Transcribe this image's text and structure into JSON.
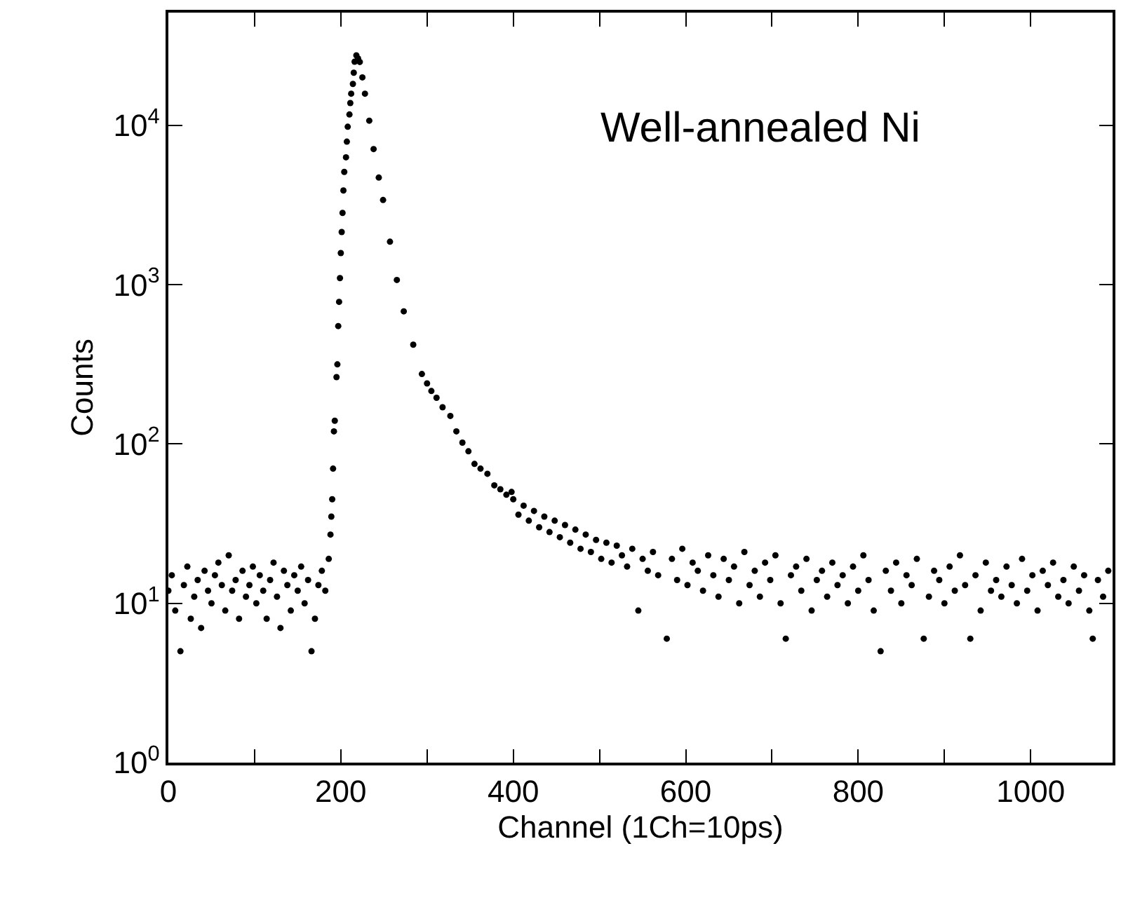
{
  "chart_data": {
    "type": "scatter",
    "xlabel": "Channel (1Ch=10ps)",
    "ylabel": "Counts",
    "annotations": [
      "Well-annealed Ni"
    ],
    "x": [
      0,
      4,
      8,
      14,
      18,
      22,
      26,
      30,
      34,
      38,
      42,
      46,
      50,
      54,
      58,
      62,
      66,
      70,
      74,
      78,
      82,
      86,
      90,
      94,
      98,
      102,
      106,
      110,
      114,
      118,
      122,
      126,
      130,
      134,
      138,
      142,
      146,
      150,
      154,
      158,
      162,
      166,
      170,
      174,
      178,
      182,
      186,
      188,
      189,
      190,
      191,
      192,
      193,
      195,
      196,
      197,
      198,
      199,
      200,
      201,
      202,
      203,
      204,
      206,
      207,
      208,
      210,
      211,
      212,
      214,
      215,
      216,
      218,
      220,
      222,
      225,
      228,
      233,
      238,
      244,
      249,
      257,
      265,
      273,
      284,
      294,
      300,
      305,
      311,
      318,
      327,
      334,
      341,
      348,
      355,
      362,
      370,
      378,
      385,
      392,
      398,
      400,
      406,
      412,
      418,
      424,
      430,
      436,
      442,
      448,
      454,
      460,
      466,
      472,
      478,
      484,
      490,
      496,
      502,
      508,
      514,
      520,
      526,
      532,
      538,
      545,
      550,
      556,
      562,
      568,
      578,
      584,
      590,
      596,
      602,
      608,
      614,
      620,
      626,
      632,
      638,
      644,
      650,
      656,
      662,
      668,
      674,
      680,
      686,
      692,
      698,
      704,
      710,
      716,
      722,
      728,
      734,
      740,
      746,
      752,
      758,
      764,
      770,
      776,
      782,
      788,
      794,
      800,
      806,
      812,
      818,
      826,
      832,
      838,
      844,
      850,
      856,
      862,
      868,
      876,
      882,
      888,
      894,
      900,
      906,
      912,
      918,
      924,
      930,
      936,
      942,
      948,
      954,
      960,
      966,
      972,
      978,
      984,
      990,
      996,
      1002,
      1008,
      1014,
      1020,
      1026,
      1032,
      1038,
      1044,
      1050,
      1056,
      1062,
      1068,
      1072,
      1078,
      1084,
      1090
    ],
    "series": [
      {
        "color": "#000000",
        "values": [
          12,
          15,
          9,
          5,
          13,
          17,
          8,
          11,
          14,
          7,
          16,
          12,
          10,
          15,
          18,
          13,
          9,
          20,
          12,
          14,
          8,
          16,
          11,
          13,
          17,
          10,
          15,
          12,
          8,
          14,
          18,
          11,
          7,
          16,
          13,
          9,
          15,
          12,
          17,
          10,
          14,
          5,
          8,
          13,
          16,
          12,
          19,
          27,
          35,
          45,
          70,
          120,
          140,
          263,
          316,
          550,
          780,
          1100,
          1580,
          2140,
          2820,
          3900,
          5100,
          6300,
          7900,
          9800,
          11700,
          13800,
          15800,
          18200,
          21400,
          25100,
          27500,
          26300,
          25000,
          20000,
          15800,
          10700,
          7100,
          4700,
          3400,
          1860,
          1070,
          680,
          420,
          275,
          240,
          215,
          195,
          170,
          150,
          120,
          102,
          90,
          75,
          70,
          65,
          55,
          52,
          48,
          50,
          45,
          36,
          41,
          33,
          38,
          30,
          35,
          28,
          33,
          26,
          31,
          24,
          29,
          22,
          27,
          21,
          25,
          19,
          24,
          18,
          23,
          20,
          17,
          22,
          9,
          19,
          16,
          21,
          15,
          6,
          19,
          14,
          22,
          13,
          18,
          16,
          12,
          20,
          15,
          11,
          19,
          14,
          17,
          10,
          21,
          13,
          16,
          11,
          18,
          14,
          20,
          10,
          6,
          15,
          17,
          12,
          19,
          9,
          14,
          16,
          11,
          18,
          13,
          15,
          10,
          17,
          12,
          20,
          14,
          9,
          5,
          16,
          12,
          18,
          10,
          15,
          13,
          19,
          6,
          11,
          16,
          14,
          10,
          17,
          12,
          20,
          13,
          6,
          15,
          9,
          18,
          12,
          14,
          11,
          17,
          13,
          10,
          19,
          12,
          15,
          9,
          16,
          13,
          18,
          11,
          14,
          10,
          17,
          12,
          15,
          9,
          6,
          14,
          11,
          16
        ]
      }
    ],
    "xlim": [
      0,
      1095
    ],
    "xticks": [
      0,
      {
        "value": 100,
        "label": null
      },
      200,
      {
        "value": 300,
        "label": null
      },
      400,
      {
        "value": 500,
        "label": null
      },
      600,
      {
        "value": 700,
        "label": null
      },
      800,
      {
        "value": 900,
        "label": null
      },
      1000
    ],
    "ylim": [
      1,
      51000
    ],
    "log": true,
    "yticks": [
      {
        "value": 1,
        "label": "10$^{0}$"
      },
      {
        "value": 10,
        "label": "10$^{1}$"
      },
      {
        "value": 100,
        "label": "10$^{2}$"
      },
      {
        "value": 1000,
        "label": "10$^{3}$"
      },
      {
        "value": 10000,
        "label": "10$^{4}$"
      }
    ],
    "marker": "circle"
  }
}
